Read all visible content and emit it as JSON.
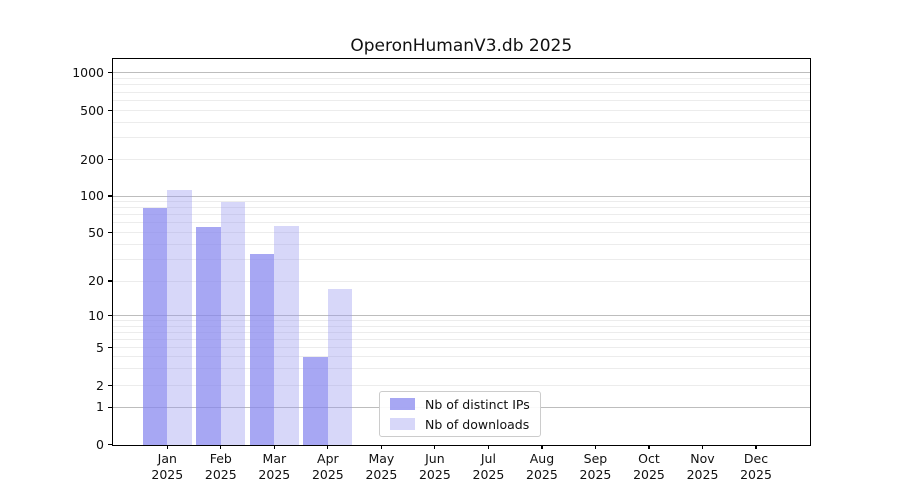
{
  "title": "OperonHumanV3.db 2025",
  "chart_data": {
    "type": "bar",
    "title": "OperonHumanV3.db 2025",
    "categories": [
      "Jan",
      "Feb",
      "Mar",
      "Apr",
      "May",
      "Jun",
      "Jul",
      "Aug",
      "Sep",
      "Oct",
      "Nov",
      "Dec"
    ],
    "year": "2025",
    "series": [
      {
        "name": "Nb of distinct IPs",
        "color": "rgba(133,133,238,0.72)",
        "values": [
          80,
          55,
          33,
          4,
          0,
          0,
          0,
          0,
          0,
          0,
          0,
          0
        ]
      },
      {
        "name": "Nb of downloads",
        "color": "rgba(150,150,240,0.38)",
        "values": [
          113,
          90,
          57,
          17,
          0,
          0,
          0,
          0,
          0,
          0,
          0,
          0
        ]
      }
    ],
    "yscale": "symlog",
    "yticks": [
      1000,
      500,
      200,
      100,
      50,
      20,
      10,
      5,
      2,
      1,
      0
    ],
    "ylim": [
      0,
      1150
    ],
    "xlabel": "",
    "ylabel": "",
    "grid": {
      "horizontal": true,
      "major_at": [
        1,
        10,
        100,
        1000
      ],
      "minor_at": [
        2,
        3,
        4,
        5,
        6,
        7,
        8,
        9,
        20,
        30,
        40,
        50,
        60,
        70,
        80,
        90,
        200,
        300,
        400,
        500,
        600,
        700,
        800,
        900
      ],
      "major_color": "#bdbdbd",
      "minor_color": "#ececec"
    },
    "legend_position": "inside-bottom-left-of-center",
    "background_color": "#ffffff",
    "spine_color": "#000000"
  }
}
